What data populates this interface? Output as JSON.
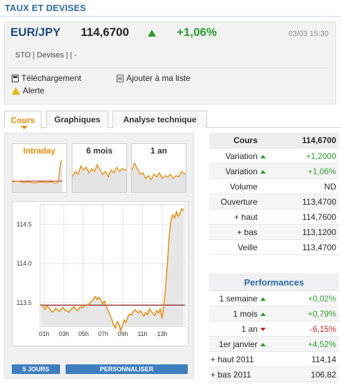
{
  "header": {
    "section_title": "TAUX ET DEVISES"
  },
  "quote": {
    "pair": "EUR/JPY",
    "price": "114,6700",
    "change": "+1,06%",
    "datetime": "03/03 15:30",
    "meta": "STO | Devises |  | -",
    "direction_icon": "arrow-up-icon",
    "up_color": "#2a9a2a"
  },
  "actions": {
    "download": "Téléchargement",
    "add_list": "Ajouter à ma liste",
    "alert": "Alerte"
  },
  "tabs": [
    {
      "label": "Cours",
      "active": true
    },
    {
      "label": "Graphiques",
      "active": false
    },
    {
      "label": "Analyse technique",
      "active": false
    }
  ],
  "mini_charts": [
    {
      "label": "Intraday",
      "active": true
    },
    {
      "label": "6 mois",
      "active": false
    },
    {
      "label": "1 an",
      "active": false
    }
  ],
  "chart": {
    "y_ticks": [
      "114.5",
      "114.0",
      "113.5"
    ],
    "x_ticks": [
      "01h",
      "03h",
      "05h",
      "07h",
      "09h",
      "11h",
      "13h"
    ],
    "ref_line": 113.47,
    "line_color": "#e88a00",
    "ref_color": "#8b1a1a"
  },
  "buttons": {
    "five_days": "5 JOURS",
    "custom": "PERSONNALISER"
  },
  "stats": {
    "head_label": "Cours",
    "head_value": "114,6700",
    "rows": [
      {
        "label": "Variation",
        "value": "+1,2000",
        "trend": "up"
      },
      {
        "label": "Variation",
        "value": "+1,06%",
        "trend": "up"
      },
      {
        "label": "Volume",
        "value": "ND",
        "trend": ""
      },
      {
        "label": "Ouverture",
        "value": "113,4700",
        "trend": ""
      },
      {
        "label": "+ haut",
        "value": "114,7600",
        "trend": ""
      },
      {
        "label": "+ bas",
        "value": "113,1200",
        "trend": ""
      },
      {
        "label": "Veille",
        "value": "113,4700",
        "trend": ""
      }
    ]
  },
  "performances": {
    "title": "Performances",
    "rows": [
      {
        "label": "1 semaine",
        "value": "+0,02%",
        "trend": "up"
      },
      {
        "label": "1 mois",
        "value": "+0,79%",
        "trend": "up"
      },
      {
        "label": "1 an",
        "value": "-6,15%",
        "trend": "down"
      },
      {
        "label": "1er janvier",
        "value": "+4,52%",
        "trend": "up"
      },
      {
        "label": "+ haut 2011",
        "value": "114,14",
        "trend": ""
      },
      {
        "label": "+ bas 2011",
        "value": "106,82",
        "trend": ""
      }
    ]
  }
}
